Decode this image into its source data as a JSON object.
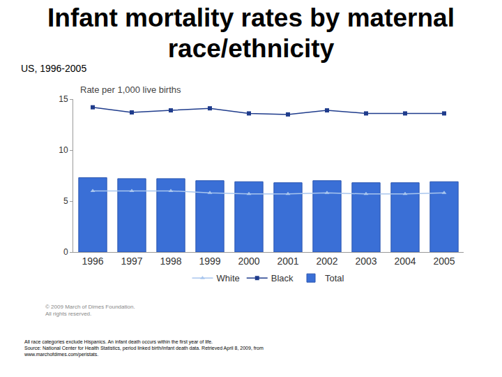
{
  "chart_data": {
    "type": "bar",
    "title": "Infant mortality rates by maternal race/ethnicity",
    "subtitle": "US, 1996-2005",
    "y_label": "Rate per 1,000 live births",
    "categories": [
      "1996",
      "1997",
      "1998",
      "1999",
      "2000",
      "2001",
      "2002",
      "2003",
      "2004",
      "2005"
    ],
    "series": [
      {
        "name": "White",
        "type": "line",
        "color": "#a9c6ee",
        "marker": "triangle-up",
        "line_style": "solid",
        "values": [
          6.0,
          6.0,
          6.0,
          5.8,
          5.7,
          5.7,
          5.8,
          5.7,
          5.7,
          5.8
        ]
      },
      {
        "name": "Black",
        "type": "line",
        "color": "#1f3c8c",
        "marker": "square",
        "line_style": "solid",
        "values": [
          14.2,
          13.7,
          13.9,
          14.1,
          13.6,
          13.5,
          13.9,
          13.6,
          13.6,
          13.6
        ]
      },
      {
        "name": "Total",
        "type": "bar",
        "color": "#3a6fd6",
        "values": [
          7.3,
          7.2,
          7.2,
          7.0,
          6.9,
          6.8,
          7.0,
          6.8,
          6.8,
          6.9
        ]
      }
    ],
    "ylim": [
      0,
      15
    ],
    "yticks": [
      0,
      5,
      10,
      15
    ],
    "grid": false,
    "legend": "bottom",
    "copyright": [
      "© 2009 March of Dimes Foundation.",
      "All rights reserved."
    ],
    "notes": [
      "All race categories exclude Hispanics. An infant death occurs within the first year of life.",
      "Source: National Center for Health Statistics, period linked birth/infant death data. Retrieved April 8, 2009, from",
      "www.marchofdimes.com/peristats."
    ]
  }
}
